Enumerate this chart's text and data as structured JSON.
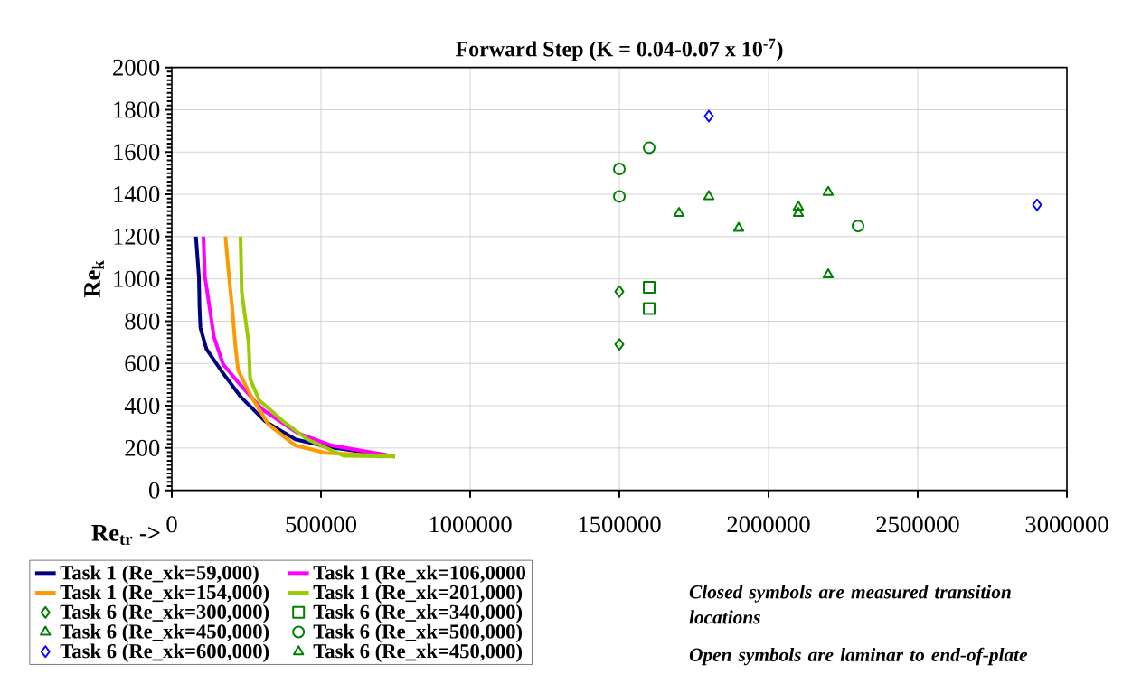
{
  "chart_data": {
    "type": "line",
    "title": "Forward Step (K = 0.04-0.07 x 10$^{-7}$)",
    "xlabel": "Re$_{tr}$ ->",
    "ylabel": "Re$_{k}$",
    "xlim": [
      0,
      3000000
    ],
    "ylim": [
      0,
      2000
    ],
    "xticks": [
      0,
      500000,
      1000000,
      1500000,
      2000000,
      2500000,
      3000000
    ],
    "yticks": [
      0,
      200,
      400,
      600,
      800,
      1000,
      1200,
      1400,
      1600,
      1800,
      2000
    ],
    "grid": true,
    "legend": "bottom left",
    "line_style": "solid",
    "annotations": [
      "Closed symbols are measured transition locations",
      "Open symbols are laminar to end-of-plate"
    ],
    "series": [
      {
        "name": "Task 1 (Re_xk=59,000)",
        "color": "#000080",
        "marker": "none",
        "x": [
          80900,
          90900,
          92900,
          96000,
          116200,
          171700,
          232300,
          313100,
          414100,
          525200,
          747500
        ],
        "values": [
          1200,
          1010,
          868,
          768,
          668,
          554,
          440,
          326,
          241,
          205,
          160
        ]
      },
      {
        "name": "Task 1 (Re_xk=106,0000",
        "color": "#ff00ff",
        "marker": "none",
        "x": [
          106000,
          111100,
          126200,
          141400,
          171700,
          222200,
          303000,
          424200,
          535400,
          747500
        ],
        "values": [
          1200,
          1010,
          868,
          725,
          597,
          511,
          383,
          269,
          212,
          160
        ]
      },
      {
        "name": "Task 1 (Re_xk=154,000)",
        "color": "#ff9900",
        "marker": "none",
        "x": [
          179800,
          191900,
          204000,
          212100,
          222200,
          262600,
          323300,
          414100,
          515200,
          747500
        ],
        "values": [
          1200,
          1010,
          840,
          697,
          568,
          454,
          312,
          212,
          177,
          160
        ]
      },
      {
        "name": "Task 1 (Re_xk=201,000)",
        "color": "#99cc00",
        "marker": "none",
        "x": [
          230300,
          234300,
          257600,
          262600,
          293000,
          373600,
          454500,
          575800,
          747500
        ],
        "values": [
          1200,
          939,
          697,
          526,
          426,
          326,
          241,
          163,
          160
        ]
      },
      {
        "name": "Task 6 (Re_xk=300,000)",
        "color": "#008000",
        "type": "scatter",
        "marker": "diamond",
        "x": [
          1500000,
          1500000
        ],
        "values": [
          940,
          690
        ]
      },
      {
        "name": "Task 6 (Re_xk=340,000)",
        "color": "#008000",
        "type": "scatter",
        "marker": "square",
        "x": [
          1600000,
          1600000
        ],
        "values": [
          960,
          860
        ]
      },
      {
        "name": "Task 6 (Re_xk=450,000)",
        "color": "#008000",
        "type": "scatter",
        "marker": "triangle",
        "x": [
          1900000,
          2100000,
          2100000,
          2200000,
          2200000
        ],
        "values": [
          1240,
          1340,
          1310,
          1410,
          1020
        ]
      },
      {
        "name": "Task 6 (Re_xk=500,000)",
        "color": "#008000",
        "type": "scatter",
        "marker": "circle",
        "x": [
          1500000,
          1500000,
          1600000,
          2300000
        ],
        "values": [
          1520,
          1390,
          1620,
          1250
        ]
      },
      {
        "name": "Task 6 (Re_xk=600,000)",
        "color": "#0000ff",
        "type": "scatter",
        "marker": "diamond",
        "x": [
          1800000,
          2900000
        ],
        "values": [
          1770,
          1350
        ]
      },
      {
        "name": "Task 6 (Re_xk=450,000)",
        "color": "#008000",
        "type": "scatter",
        "marker": "triangle",
        "x": [
          1700000,
          1800000
        ],
        "values": [
          1310,
          1390
        ]
      }
    ]
  }
}
